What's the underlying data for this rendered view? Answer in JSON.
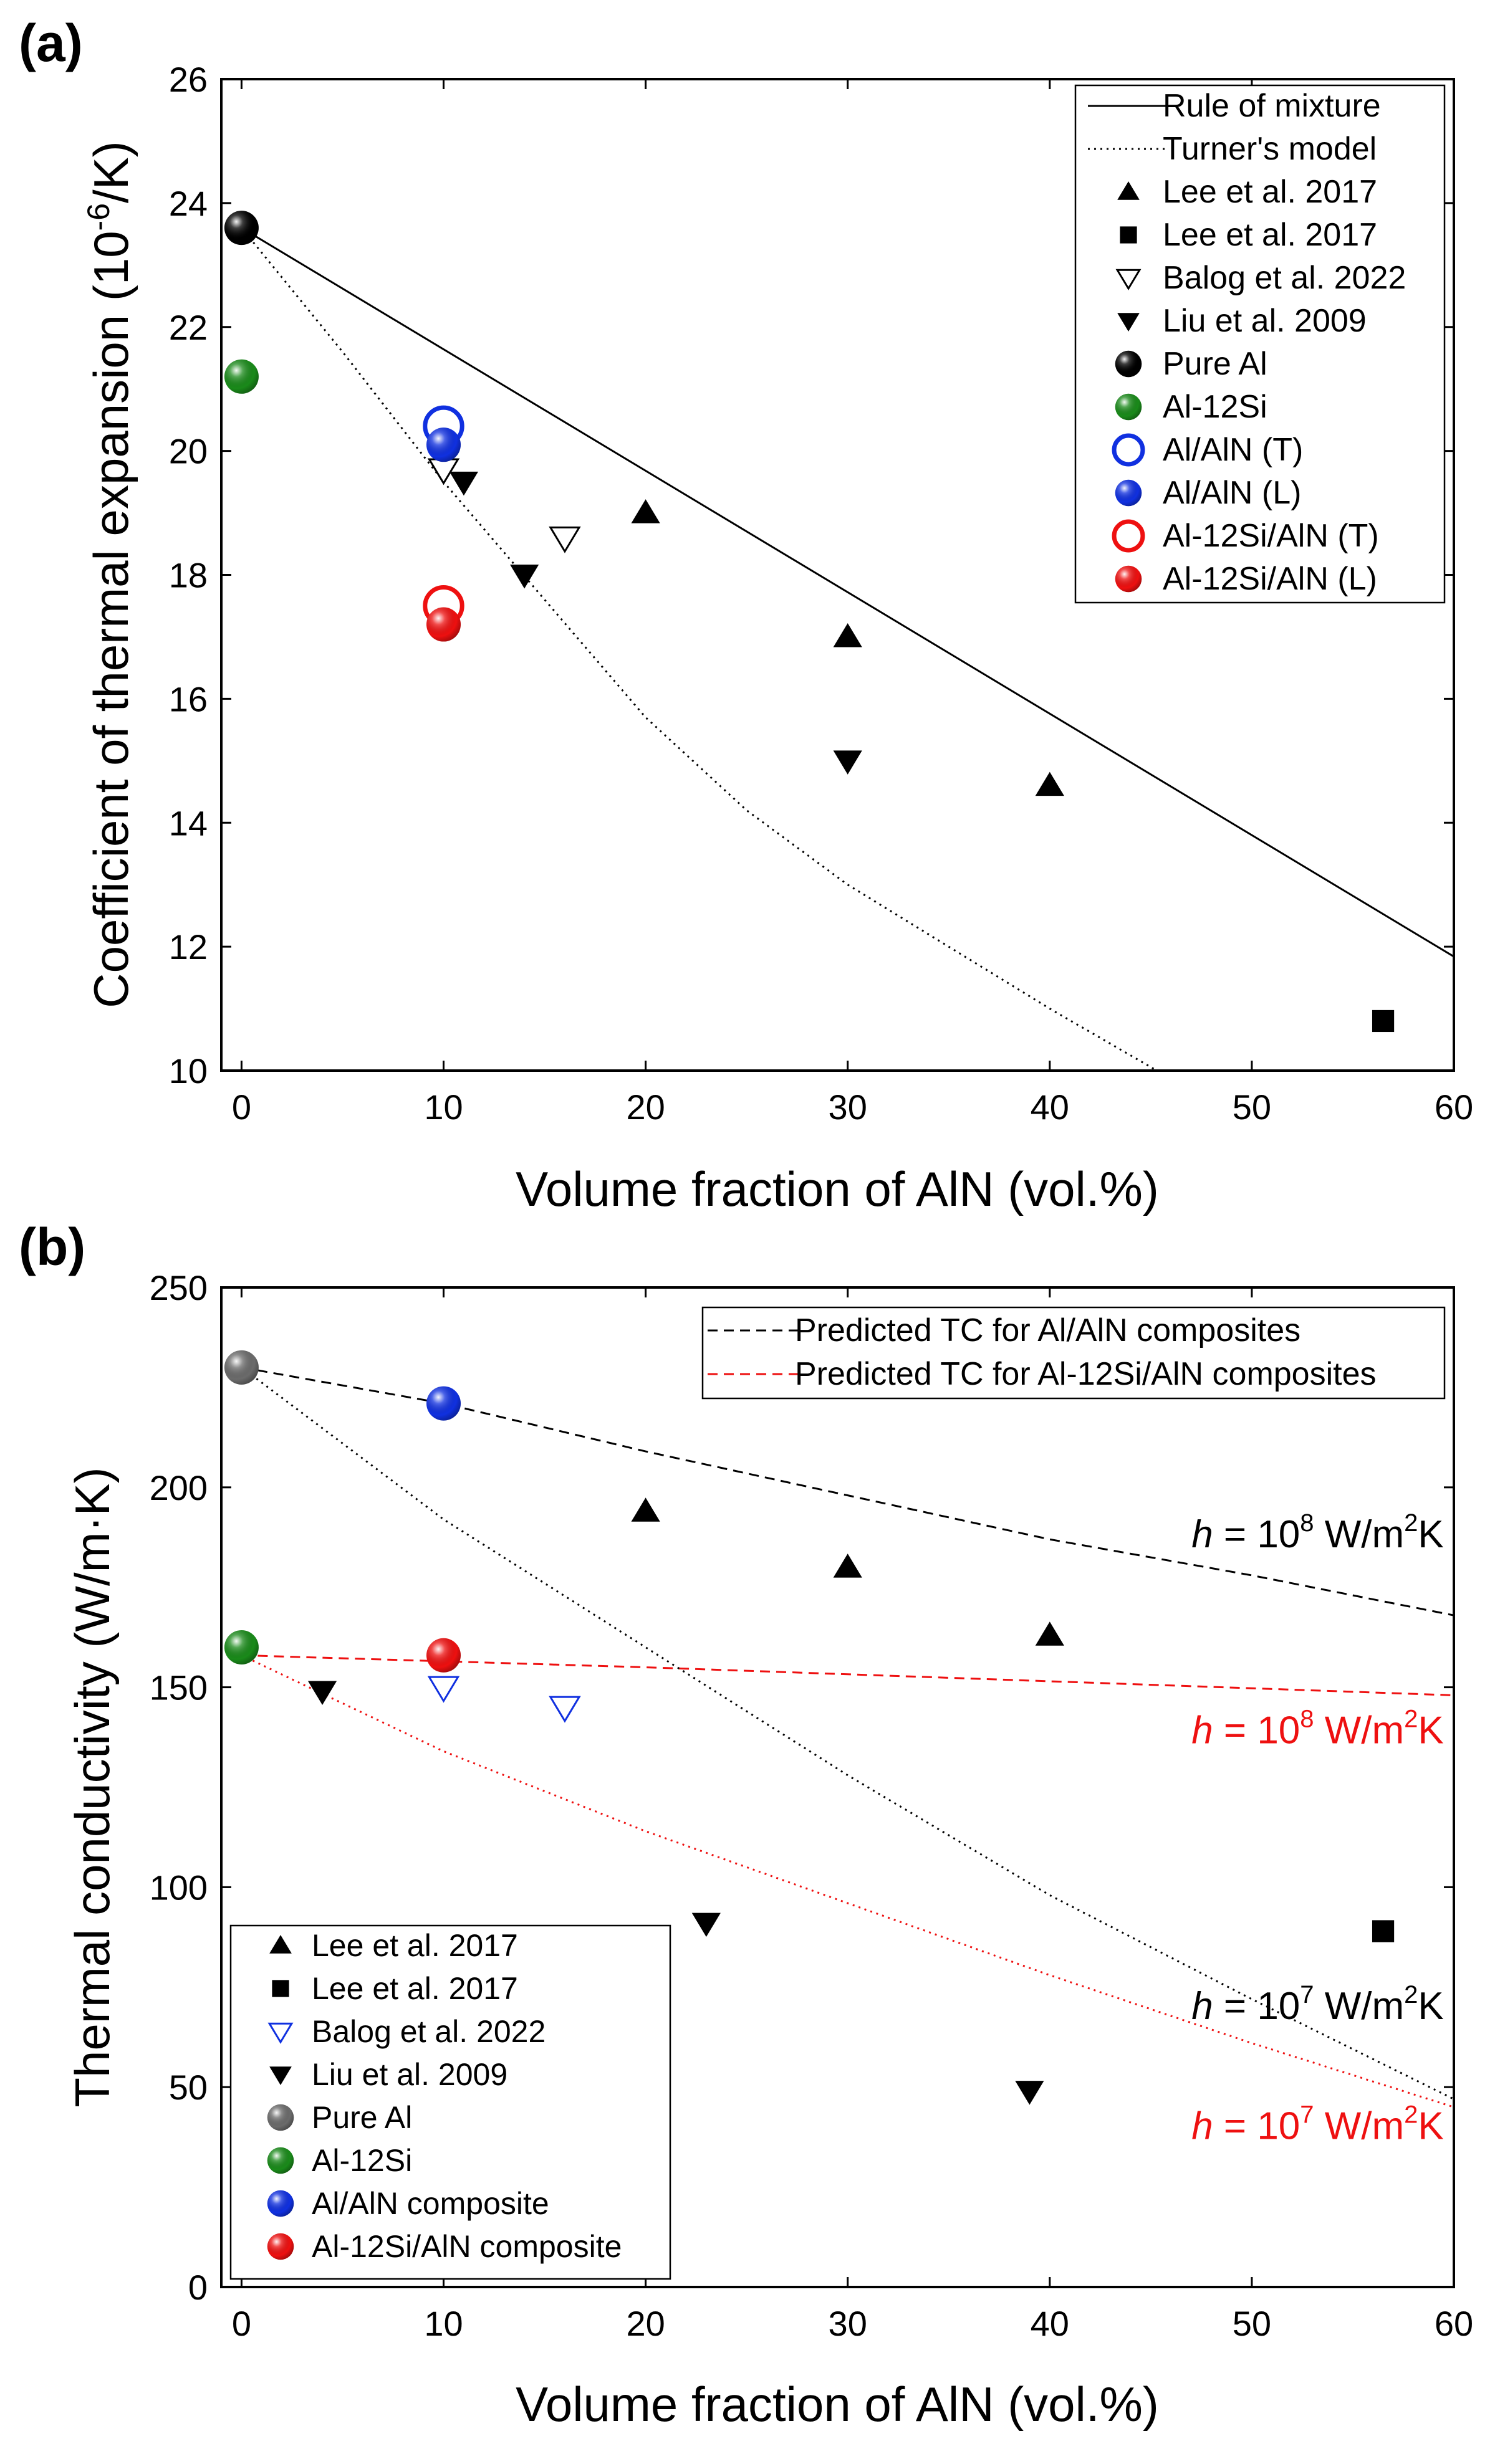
{
  "panels": [
    {
      "letter": "(a)",
      "chart_data": {
        "type": "scatter",
        "title": "",
        "xlabel": "Volume fraction of AlN (vol.%)",
        "ylabel_text": "Coefficient of thermal expansion (10",
        "ylabel_sup": "-6",
        "ylabel_tail": "/K)",
        "xlim": [
          -1,
          60
        ],
        "ylim": [
          10,
          26
        ],
        "xticks": [
          0,
          10,
          20,
          30,
          40,
          50,
          60
        ],
        "yticks": [
          10,
          12,
          14,
          16,
          18,
          20,
          22,
          24,
          26
        ],
        "grid": false,
        "legend_position": "top-right",
        "series": [
          {
            "name": "Rule of mixture",
            "kind": "line",
            "style": "solid",
            "color": "#000000",
            "points": [
              [
                0,
                23.6
              ],
              [
                60,
                11.84
              ]
            ]
          },
          {
            "name": "Turner's model",
            "kind": "line",
            "style": "dotted",
            "color": "#000000",
            "points": [
              [
                0,
                23.6
              ],
              [
                5,
                21.6
              ],
              [
                10,
                19.5
              ],
              [
                15,
                17.6
              ],
              [
                20,
                15.7
              ],
              [
                25,
                14.2
              ],
              [
                30,
                13.0
              ],
              [
                35,
                12.0
              ],
              [
                40,
                11.0
              ],
              [
                45.3,
                10.0
              ]
            ]
          },
          {
            "name": "Lee et al. 2017",
            "kind": "marker",
            "marker": "triangle-up",
            "color": "#000000",
            "points": [
              [
                20,
                19.0
              ],
              [
                30,
                17.0
              ],
              [
                40,
                14.6
              ]
            ]
          },
          {
            "name": "Lee et al. 2017",
            "kind": "marker",
            "marker": "square",
            "color": "#000000",
            "points": [
              [
                56.5,
                10.8
              ]
            ]
          },
          {
            "name": "Balog et al. 2022",
            "kind": "marker",
            "marker": "triangle-down-open",
            "color": "#000000",
            "points": [
              [
                10,
                19.7
              ],
              [
                16,
                18.6
              ]
            ]
          },
          {
            "name": "Liu et al. 2009",
            "kind": "marker",
            "marker": "triangle-down",
            "color": "#000000",
            "points": [
              [
                11,
                19.5
              ],
              [
                14,
                18.0
              ],
              [
                30,
                15.0
              ]
            ]
          },
          {
            "name": "Pure Al",
            "kind": "marker",
            "marker": "sphere",
            "color": "#000000",
            "points": [
              [
                0,
                23.6
              ]
            ]
          },
          {
            "name": "Al-12Si",
            "kind": "marker",
            "marker": "sphere",
            "color": "#1a8a1a",
            "points": [
              [
                0,
                21.2
              ]
            ]
          },
          {
            "name": "Al/AlN (T)",
            "kind": "marker",
            "marker": "circle-open",
            "color": "#1030e0",
            "points": [
              [
                10,
                20.4
              ]
            ]
          },
          {
            "name": "Al/AlN (L)",
            "kind": "marker",
            "marker": "sphere",
            "color": "#1030e0",
            "points": [
              [
                10,
                20.1
              ]
            ]
          },
          {
            "name": "Al-12Si/AlN (T)",
            "kind": "marker",
            "marker": "circle-open",
            "color": "#ee1010",
            "points": [
              [
                10,
                17.5
              ]
            ]
          },
          {
            "name": "Al-12Si/AlN (L)",
            "kind": "marker",
            "marker": "sphere",
            "color": "#ee1010",
            "points": [
              [
                10,
                17.2
              ]
            ]
          }
        ],
        "annotations": []
      }
    },
    {
      "letter": "(b)",
      "chart_data": {
        "type": "scatter",
        "title": "",
        "xlabel": "Volume fraction of AlN (vol.%)",
        "ylabel_text": "Thermal conductivity (W/m·K)",
        "ylabel_sup": "",
        "ylabel_tail": "",
        "xlim": [
          -1,
          60
        ],
        "ylim": [
          0,
          250
        ],
        "xticks": [
          0,
          10,
          20,
          30,
          40,
          50,
          60
        ],
        "yticks": [
          0,
          50,
          100,
          150,
          200,
          250
        ],
        "grid": false,
        "legend_position": "bottom-left",
        "series": [
          {
            "name": "Predicted TC for Al/AlN composites",
            "kind": "line",
            "style": "dashed",
            "color": "#000000",
            "legend_group": "top",
            "points": [
              [
                0,
                230
              ],
              [
                10,
                221
              ],
              [
                20,
                209
              ],
              [
                30,
                198
              ],
              [
                40,
                187
              ],
              [
                50,
                178
              ],
              [
                60,
                168
              ]
            ]
          },
          {
            "name": "Predicted TC for Al-12Si/AlN composites",
            "kind": "line",
            "style": "dashed",
            "color": "#ee1010",
            "legend_group": "top",
            "points": [
              [
                0,
                158
              ],
              [
                20,
                155
              ],
              [
                40,
                151.5
              ],
              [
                60,
                148
              ]
            ]
          },
          {
            "name": "",
            "kind": "line",
            "style": "dotted",
            "color": "#000000",
            "legend_group": "none",
            "points": [
              [
                0,
                230
              ],
              [
                10,
                192
              ],
              [
                20,
                160
              ],
              [
                30,
                128
              ],
              [
                40,
                98
              ],
              [
                50,
                72
              ],
              [
                60,
                47
              ]
            ]
          },
          {
            "name": "",
            "kind": "line",
            "style": "dotted",
            "color": "#ee1010",
            "legend_group": "none",
            "points": [
              [
                0,
                158
              ],
              [
                10,
                134
              ],
              [
                20,
                114
              ],
              [
                30,
                96
              ],
              [
                40,
                78
              ],
              [
                50,
                61
              ],
              [
                60,
                45
              ]
            ]
          },
          {
            "name": "Lee et al. 2017",
            "kind": "marker",
            "marker": "triangle-up",
            "color": "#000000",
            "points": [
              [
                20,
                194
              ],
              [
                30,
                180
              ],
              [
                40,
                163
              ]
            ]
          },
          {
            "name": "Lee et al. 2017",
            "kind": "marker",
            "marker": "square",
            "color": "#000000",
            "points": [
              [
                56.5,
                89
              ]
            ]
          },
          {
            "name": "Balog et al. 2022",
            "kind": "marker",
            "marker": "triangle-down-open",
            "color": "#1030e0",
            "points": [
              [
                10,
                150
              ],
              [
                16,
                145
              ]
            ]
          },
          {
            "name": "Liu et al. 2009",
            "kind": "marker",
            "marker": "triangle-down",
            "color": "#000000",
            "points": [
              [
                4,
                149
              ],
              [
                23,
                91
              ],
              [
                39,
                49
              ]
            ]
          },
          {
            "name": "Pure Al",
            "kind": "marker",
            "marker": "sphere",
            "color": "#6b6b6b",
            "points": [
              [
                0,
                230
              ]
            ]
          },
          {
            "name": "Al-12Si",
            "kind": "marker",
            "marker": "sphere",
            "color": "#1a8a1a",
            "points": [
              [
                0,
                160
              ]
            ]
          },
          {
            "name": "Al/AlN composite",
            "kind": "marker",
            "marker": "sphere",
            "color": "#1030e0",
            "points": [
              [
                10,
                221
              ]
            ]
          },
          {
            "name": "Al-12Si/AlN composite",
            "kind": "marker",
            "marker": "sphere",
            "color": "#ee1010",
            "points": [
              [
                10,
                158
              ]
            ]
          }
        ],
        "annotations": [
          {
            "h": "h",
            "mid": " = 10",
            "exp": "8",
            "unit": " W/m",
            "unit_exp": "2",
            "unit_tail": "K",
            "color": "#000000",
            "at": [
              59.5,
              185
            ]
          },
          {
            "h": "h",
            "mid": " = 10",
            "exp": "8",
            "unit": " W/m",
            "unit_exp": "2",
            "unit_tail": "K",
            "color": "#ee1010",
            "at": [
              59.5,
              136
            ]
          },
          {
            "h": "h",
            "mid": " = 10",
            "exp": "7",
            "unit": " W/m",
            "unit_exp": "2",
            "unit_tail": "K",
            "color": "#000000",
            "at": [
              59.5,
              67
            ]
          },
          {
            "h": "h",
            "mid": " = 10",
            "exp": "7",
            "unit": " W/m",
            "unit_exp": "2",
            "unit_tail": "K",
            "color": "#ee1010",
            "at": [
              59.5,
              37
            ]
          }
        ]
      }
    }
  ]
}
